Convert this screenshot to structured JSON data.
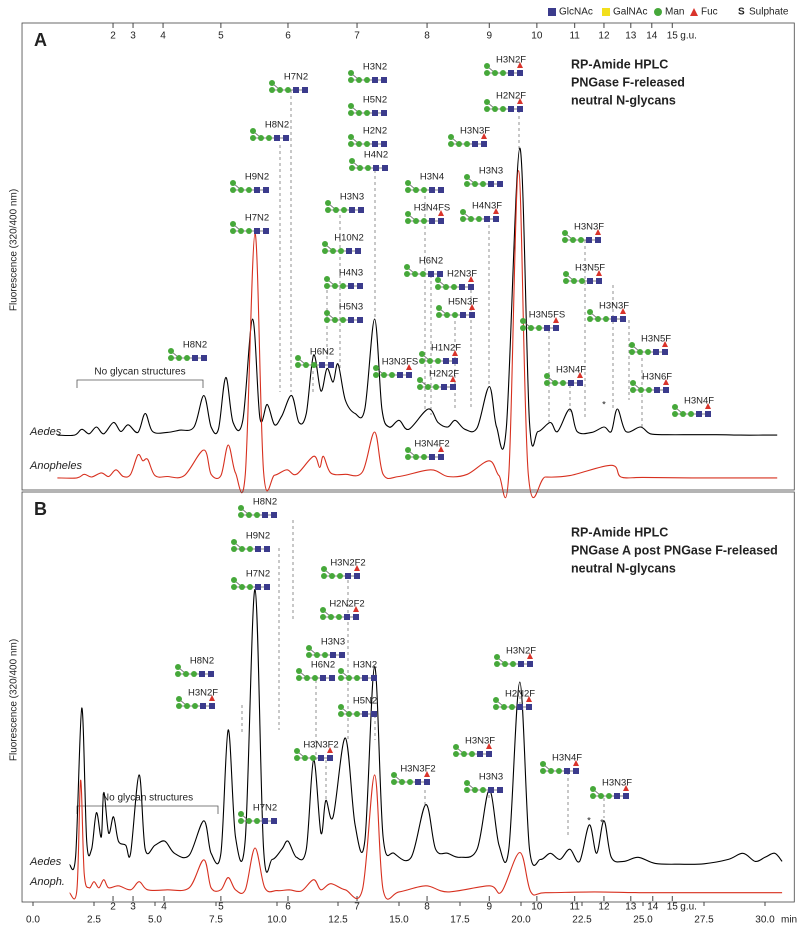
{
  "symbol_legend": [
    {
      "label": "GlcNAc",
      "shape": "square",
      "color": "#3b3b8c"
    },
    {
      "label": "GalNAc",
      "shape": "square",
      "color": "#f2df1c"
    },
    {
      "label": "Man",
      "shape": "circle",
      "color": "#46a83a"
    },
    {
      "label": "Fuc",
      "shape": "triangle",
      "color": "#d9342b"
    },
    {
      "shape": "text",
      "symbol": "S",
      "label": "Sulphate"
    }
  ],
  "chart_data": [
    {
      "type": "line",
      "letter": "A",
      "title": [
        "RP-Amide HPLC",
        "PNGase F-released",
        "neutral N-glycans"
      ],
      "ylabel": "Fluorescence (320/400 nm)",
      "note": "No glycan structures",
      "xlim": [
        -0.45,
        31.2
      ],
      "ylim": [
        0,
        103.8
      ],
      "gu_ticks": [
        {
          "value": 3.28,
          "label": "2"
        },
        {
          "value": 4.1,
          "label": "3"
        },
        {
          "value": 5.33,
          "label": "4"
        },
        {
          "value": 7.7,
          "label": "5"
        },
        {
          "value": 10.45,
          "label": "6"
        },
        {
          "value": 13.28,
          "label": "7"
        },
        {
          "value": 16.15,
          "label": "8"
        },
        {
          "value": 18.7,
          "label": "9"
        },
        {
          "value": 20.65,
          "label": "10"
        },
        {
          "value": 22.2,
          "label": "11"
        },
        {
          "value": 23.4,
          "label": "12"
        },
        {
          "value": 24.5,
          "label": "13"
        },
        {
          "value": 25.36,
          "label": "14"
        },
        {
          "value": 26.2,
          "label": "15"
        }
      ],
      "gu_unit": "g.u.",
      "series": [
        {
          "name": "Aedes",
          "color": "#000000",
          "x": [
            1.0,
            1.7,
            2.0,
            2.3,
            2.6,
            2.9,
            3.3,
            3.6,
            3.9,
            4.3,
            4.6,
            4.9,
            5.5,
            6.0,
            6.6,
            7.0,
            7.3,
            7.6,
            7.9,
            8.2,
            8.6,
            9.0,
            9.3,
            9.6,
            9.9,
            10.2,
            10.6,
            10.9,
            11.2,
            11.5,
            11.8,
            12.05,
            12.3,
            12.5,
            12.8,
            13.2,
            13.6,
            14.0,
            14.3,
            14.6,
            15.0,
            15.4,
            16.2,
            16.6,
            17.0,
            17.3,
            17.7,
            18.2,
            18.7,
            19.0,
            19.4,
            19.95,
            20.35,
            20.7,
            21.2,
            21.5,
            22.0,
            22.3,
            22.9,
            23.4,
            23.7,
            23.95,
            24.3,
            24.9,
            25.3,
            26,
            27,
            28,
            29,
            30,
            30.5
          ],
          "values": [
            12.2,
            12.2,
            13.5,
            12.5,
            14,
            12.5,
            15,
            13,
            14.5,
            12.8,
            17,
            13,
            12.8,
            13.3,
            14,
            21,
            14,
            13.5,
            25,
            15,
            15.5,
            38,
            16,
            19,
            14.5,
            16.5,
            21,
            15,
            17,
            30,
            22,
            27,
            24,
            28,
            20,
            17,
            18,
            38,
            18,
            14,
            15.5,
            13.5,
            18,
            15,
            14,
            15.5,
            13.5,
            13.8,
            23,
            14,
            14,
            76,
            15,
            13,
            15,
            13,
            18,
            13,
            12.8,
            14,
            13,
            18,
            13,
            14,
            12.5,
            12.3,
            12.3,
            12.3,
            12.2,
            12.2,
            12.2
          ]
        },
        {
          "name": "Anopheles",
          "color": "#d7301f",
          "x": [
            1.0,
            1.8,
            2.1,
            2.4,
            2.8,
            3.1,
            3.4,
            3.7,
            4.0,
            4.3,
            4.5,
            4.7,
            5.0,
            5.5,
            6.2,
            7.0,
            7.3,
            7.7,
            8.0,
            8.3,
            8.7,
            9.1,
            9.45,
            9.9,
            10.4,
            10.8,
            11.5,
            11.75,
            11.9,
            12.2,
            12.8,
            13.5,
            14.0,
            14.35,
            15.0,
            16.3,
            17.0,
            17.8,
            18.7,
            19.1,
            19.5,
            19.9,
            20.3,
            21.0,
            22.0,
            23.7,
            24.1,
            25,
            27,
            30.5
          ],
          "values": [
            2.7,
            2.7,
            3.5,
            2.9,
            3.8,
            3,
            4.5,
            3,
            3.5,
            7.8,
            6.5,
            6.8,
            3.2,
            3,
            3.2,
            8.9,
            3.5,
            3.2,
            10,
            3.8,
            3.5,
            57,
            4,
            3.3,
            4.5,
            3.5,
            7.5,
            5,
            7.5,
            3.8,
            3.5,
            4,
            12.9,
            3.5,
            3,
            4.5,
            3,
            3.5,
            6.5,
            3.2,
            3.5,
            71,
            3.5,
            2.9,
            3.2,
            5.5,
            2.9,
            2.8,
            2.7,
            2.7
          ]
        }
      ],
      "annotations": [
        "H8N2",
        "H9N2",
        "H7N2",
        "H8N2",
        "H7N2",
        "H3N3",
        "H10N2",
        "H4N3",
        "H5N3",
        "H6N2",
        "H3N2",
        "H5N2",
        "H2N2",
        "H4N2",
        "H3N4",
        "H3N4FS",
        "H6N2",
        "H3N3FS",
        "H3N3F",
        "H3N3",
        "H4N3F",
        "H3N2F",
        "H2N2F",
        "H2N3F",
        "H5N3F",
        "H1N2F",
        "H2N2F",
        "H3N4F2",
        "H3N5FS",
        "H3N4F",
        "H3N3F",
        "H3N5F",
        "H3N3F",
        "H3N5F",
        "H3N6F",
        "H3N4F",
        "*"
      ]
    },
    {
      "type": "line",
      "letter": "B",
      "title": [
        "RP-Amide HPLC",
        "PNGase A post PNGase F-released",
        "neutral N-glycans"
      ],
      "ylabel": "Fluorescence (320/400 nm)",
      "note": "No glycan structures",
      "xlim": [
        -0.45,
        31.2
      ],
      "ylim": [
        -1,
        100
      ],
      "xticks": [
        {
          "value": 0,
          "label": "0.0"
        },
        2.5,
        {
          "value": 5,
          "label": "5.0"
        },
        7.5,
        {
          "value": 10,
          "label": "10.0"
        },
        12.5,
        {
          "value": 15,
          "label": "15.0"
        },
        17.5,
        {
          "value": 20,
          "label": "20.0"
        },
        22.5,
        {
          "value": 25,
          "label": "25.0"
        },
        27.5,
        {
          "value": 30,
          "label": "30.0"
        }
      ],
      "xlabel": "min",
      "gu_ticks": [
        {
          "value": 3.28,
          "label": "2"
        },
        {
          "value": 4.1,
          "label": "3"
        },
        {
          "value": 5.37,
          "label": "4"
        },
        {
          "value": 7.7,
          "label": "5"
        },
        {
          "value": 10.45,
          "label": "6"
        },
        {
          "value": 13.28,
          "label": "7"
        },
        {
          "value": 16.15,
          "label": "8"
        },
        {
          "value": 18.7,
          "label": "9"
        },
        {
          "value": 20.65,
          "label": "10"
        },
        {
          "value": 22.2,
          "label": "11"
        },
        {
          "value": 23.4,
          "label": "12"
        },
        {
          "value": 24.5,
          "label": "13"
        },
        {
          "value": 25.4,
          "label": "14"
        },
        {
          "value": 26.2,
          "label": "15"
        }
      ],
      "gu_unit": "g.u.",
      "series": [
        {
          "name": "Aedes",
          "color": "#000000",
          "x": [
            1.5,
            1.75,
            2.0,
            2.2,
            2.4,
            2.6,
            2.8,
            2.9,
            3.1,
            3.3,
            3.5,
            3.8,
            4.0,
            4.35,
            4.6,
            5.0,
            5.4,
            5.8,
            6.4,
            7.0,
            7.3,
            7.7,
            8.0,
            8.3,
            8.7,
            9.1,
            9.45,
            9.8,
            10.2,
            10.45,
            10.8,
            11.2,
            11.5,
            11.8,
            12.0,
            12.3,
            12.8,
            13.2,
            13.6,
            14.0,
            14.35,
            14.8,
            15.5,
            16.1,
            16.5,
            17.0,
            17.5,
            18.2,
            18.7,
            19.1,
            19.5,
            19.95,
            20.35,
            20.8,
            21.2,
            21.6,
            22.0,
            22.4,
            22.8,
            23.1,
            23.4,
            23.7,
            24.2,
            24.8,
            25.5,
            26.5,
            27.5,
            28.5,
            29.1,
            29.6,
            30.0,
            30.4,
            30.7
          ],
          "values": [
            8.1,
            10.5,
            46.8,
            14,
            12,
            21,
            15,
            26,
            16,
            20,
            14,
            13,
            11,
            30.3,
            12,
            13,
            14,
            11,
            10.5,
            19,
            11,
            11,
            41.4,
            15,
            14.5,
            76,
            12,
            9.5,
            12,
            14,
            10,
            12,
            34,
            16,
            24,
            20,
            39.4,
            18,
            14,
            57,
            15,
            11,
            10,
            23,
            12,
            11,
            10,
            12,
            26.6,
            13,
            12,
            53.2,
            12,
            9.5,
            11,
            9.5,
            12,
            9,
            18,
            11,
            19,
            10,
            9,
            10,
            8.5,
            8.3,
            8.4,
            9.5,
            11,
            9,
            10,
            11,
            9
          ]
        },
        {
          "name": "Anoph.",
          "color": "#d7301f",
          "x": [
            1.5,
            1.8,
            1.95,
            2.1,
            2.3,
            2.5,
            2.7,
            2.9,
            3.1,
            3.5,
            4.0,
            4.35,
            4.7,
            5.5,
            6.4,
            7.0,
            7.3,
            7.7,
            8.0,
            8.3,
            8.7,
            9.1,
            9.5,
            10.0,
            10.5,
            11.0,
            11.5,
            11.8,
            12.2,
            12.8,
            13.5,
            14.0,
            14.35,
            15,
            16.1,
            17,
            18.7,
            19.2,
            19.95,
            20.4,
            21,
            23,
            25,
            28,
            30.7
          ],
          "values": [
            1.2,
            2,
            29,
            6,
            2.5,
            4,
            2.5,
            4.5,
            2.5,
            3,
            2,
            4,
            2,
            2,
            2.5,
            9.4,
            2.5,
            2,
            5,
            2,
            2,
            12.3,
            2.5,
            1.8,
            2,
            1.7,
            4.5,
            2,
            3.5,
            2,
            2,
            30.3,
            2,
            1.5,
            3,
            1.5,
            3,
            1.5,
            11.2,
            1.5,
            1.3,
            1.5,
            1.3,
            1.3,
            1.3
          ]
        }
      ],
      "annotations": [
        "H8N2",
        "H9N2",
        "H7N2",
        "H3N2F2",
        "H2N2F2",
        "H3N3",
        "H6N2",
        "H3N2",
        "H5N2",
        "H8N2",
        "H3N2F",
        "H3N3F2",
        "H7N2",
        "H3N3F2",
        "H3N3F",
        "H3N3",
        "H3N2F",
        "H2N2F",
        "H3N4F",
        "H3N3F",
        "*",
        "*"
      ]
    }
  ]
}
